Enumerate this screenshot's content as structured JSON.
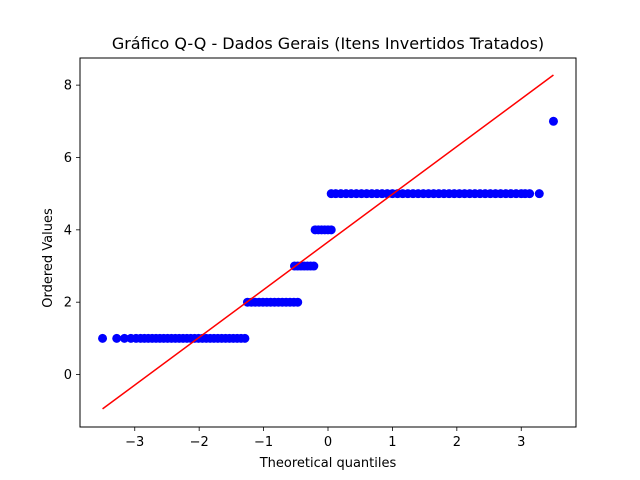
{
  "chart_data": {
    "type": "scatter",
    "title": "Gráfico Q-Q - Dados Gerais (Itens Invertidos Tratados)",
    "xlabel": "Theoretical quantiles",
    "ylabel": "Ordered Values",
    "xlim": [
      -3.85,
      3.85
    ],
    "ylim": [
      -1.45,
      8.75
    ],
    "xticks": [
      -3,
      -2,
      -1,
      0,
      1,
      2,
      3
    ],
    "xtick_labels": [
      "−3",
      "−2",
      "−1",
      "0",
      "1",
      "2",
      "3"
    ],
    "yticks": [
      0,
      2,
      4,
      6,
      8
    ],
    "ytick_labels": [
      "0",
      "2",
      "4",
      "6",
      "8"
    ],
    "grid": false,
    "series": [
      {
        "kind": "points",
        "color": "#0000ff",
        "points": [
          [
            -3.5,
            1
          ],
          [
            -3.28,
            1
          ],
          [
            -3.16,
            1
          ],
          [
            -3.06,
            1
          ],
          [
            -2.98,
            1
          ],
          [
            -2.91,
            1
          ],
          [
            -2.85,
            1
          ],
          [
            -2.79,
            1
          ],
          [
            -2.73,
            1
          ],
          [
            -2.67,
            1
          ],
          [
            -2.61,
            1
          ],
          [
            -2.55,
            1
          ],
          [
            -2.49,
            1
          ],
          [
            -2.43,
            1
          ],
          [
            -2.37,
            1
          ],
          [
            -2.31,
            1
          ],
          [
            -2.25,
            1
          ],
          [
            -2.19,
            1
          ],
          [
            -2.13,
            1
          ],
          [
            -2.07,
            1
          ],
          [
            -2.01,
            1
          ],
          [
            -1.95,
            1
          ],
          [
            -1.89,
            1
          ],
          [
            -1.83,
            1
          ],
          [
            -1.77,
            1
          ],
          [
            -1.71,
            1
          ],
          [
            -1.65,
            1
          ],
          [
            -1.59,
            1
          ],
          [
            -1.53,
            1
          ],
          [
            -1.47,
            1
          ],
          [
            -1.41,
            1
          ],
          [
            -1.35,
            1
          ],
          [
            -1.29,
            1
          ],
          [
            -1.25,
            2
          ],
          [
            -1.19,
            2
          ],
          [
            -1.13,
            2
          ],
          [
            -1.07,
            2
          ],
          [
            -1.01,
            2
          ],
          [
            -0.95,
            2
          ],
          [
            -0.89,
            2
          ],
          [
            -0.83,
            2
          ],
          [
            -0.77,
            2
          ],
          [
            -0.71,
            2
          ],
          [
            -0.65,
            2
          ],
          [
            -0.59,
            2
          ],
          [
            -0.53,
            2
          ],
          [
            -0.47,
            2
          ],
          [
            -0.52,
            3
          ],
          [
            -0.47,
            3
          ],
          [
            -0.42,
            3
          ],
          [
            -0.37,
            3
          ],
          [
            -0.32,
            3
          ],
          [
            -0.27,
            3
          ],
          [
            -0.22,
            3
          ],
          [
            -0.2,
            4
          ],
          [
            -0.15,
            4
          ],
          [
            -0.1,
            4
          ],
          [
            -0.05,
            4
          ],
          [
            0.0,
            4
          ],
          [
            0.05,
            4
          ],
          [
            0.05,
            5
          ],
          [
            0.12,
            5
          ],
          [
            0.2,
            5
          ],
          [
            0.28,
            5
          ],
          [
            0.36,
            5
          ],
          [
            0.44,
            5
          ],
          [
            0.52,
            5
          ],
          [
            0.6,
            5
          ],
          [
            0.68,
            5
          ],
          [
            0.76,
            5
          ],
          [
            0.84,
            5
          ],
          [
            0.92,
            5
          ],
          [
            1.0,
            5
          ],
          [
            1.08,
            5
          ],
          [
            1.16,
            5
          ],
          [
            1.24,
            5
          ],
          [
            1.32,
            5
          ],
          [
            1.4,
            5
          ],
          [
            1.48,
            5
          ],
          [
            1.56,
            5
          ],
          [
            1.64,
            5
          ],
          [
            1.72,
            5
          ],
          [
            1.8,
            5
          ],
          [
            1.88,
            5
          ],
          [
            1.96,
            5
          ],
          [
            2.04,
            5
          ],
          [
            2.12,
            5
          ],
          [
            2.2,
            5
          ],
          [
            2.28,
            5
          ],
          [
            2.36,
            5
          ],
          [
            2.44,
            5
          ],
          [
            2.52,
            5
          ],
          [
            2.6,
            5
          ],
          [
            2.68,
            5
          ],
          [
            2.76,
            5
          ],
          [
            2.84,
            5
          ],
          [
            2.92,
            5
          ],
          [
            3.0,
            5
          ],
          [
            3.06,
            5
          ],
          [
            3.13,
            5
          ],
          [
            3.28,
            5
          ],
          [
            3.5,
            7
          ]
        ]
      },
      {
        "kind": "line",
        "color": "#ff0000",
        "points": [
          [
            -3.5,
            -0.95
          ],
          [
            3.5,
            8.28
          ]
        ]
      }
    ]
  }
}
